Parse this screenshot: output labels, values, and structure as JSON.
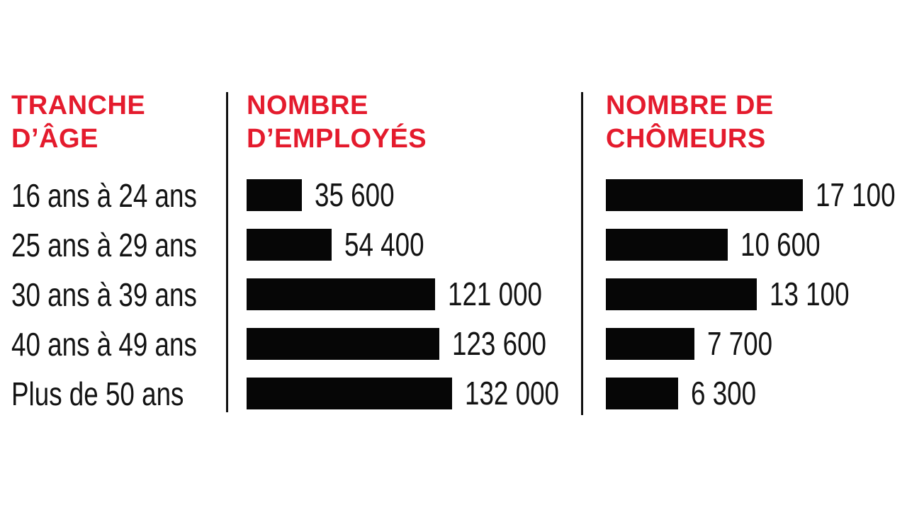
{
  "page": {
    "background_color": "#ffffff",
    "bar_color": "#060606",
    "header_color": "#e41b2d",
    "text_color": "#131313"
  },
  "chart_data": {
    "type": "bar",
    "orientation": "horizontal",
    "grid": false,
    "legend_position": "none",
    "columns": [
      {
        "header": "TRANCHE D’ÂGE"
      },
      {
        "header": "NOMBRE D’EMPLOYÉS"
      },
      {
        "header": "NOMBRE DE CHÔMEURS"
      }
    ],
    "categories": [
      "16 ans à 24 ans",
      "25 ans à 29 ans",
      "30 ans à 39 ans",
      "40 ans à 49 ans",
      "Plus de 50 ans"
    ],
    "series": [
      {
        "name": "NOMBRE D’EMPLOYÉS",
        "values": [
          35600,
          54400,
          121000,
          123600,
          132000
        ],
        "labels": [
          "35 600",
          "54 400",
          "121 000",
          "123 600",
          "132 000"
        ]
      },
      {
        "name": "NOMBRE DE CHÔMEURS",
        "values": [
          17100,
          10600,
          13100,
          7700,
          6300
        ],
        "labels": [
          "17 100",
          "10 600",
          "13 100",
          "7 700",
          "6 300"
        ]
      }
    ]
  }
}
